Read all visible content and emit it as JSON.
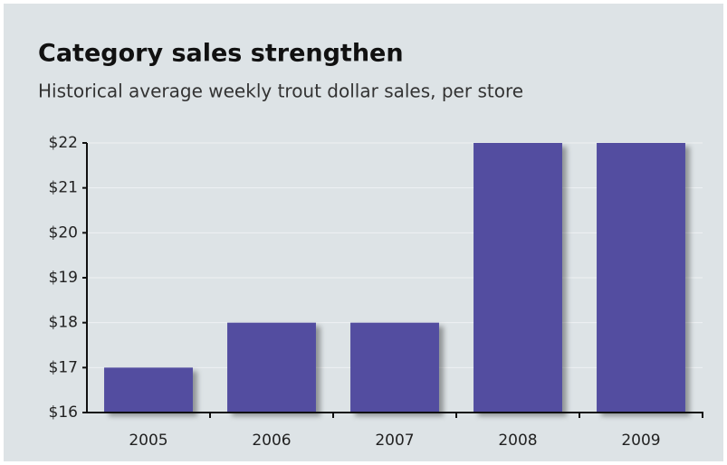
{
  "chart_data": {
    "type": "bar",
    "title": "Category sales strengthen",
    "subtitle": "Historical average weekly trout dollar sales, per store",
    "categories": [
      "2005",
      "2006",
      "2007",
      "2008",
      "2009"
    ],
    "values": [
      17,
      18,
      18,
      22,
      22
    ],
    "color": "#524ea0",
    "ylim": [
      16,
      22
    ],
    "yticks": [
      {
        "value": 16,
        "label": "$16"
      },
      {
        "value": 17,
        "label": "$17"
      },
      {
        "value": 18,
        "label": "$18"
      },
      {
        "value": 19,
        "label": "$19"
      },
      {
        "value": 20,
        "label": "$20"
      },
      {
        "value": 21,
        "label": "$21"
      },
      {
        "value": 22,
        "label": "$22"
      }
    ],
    "grid": true
  }
}
